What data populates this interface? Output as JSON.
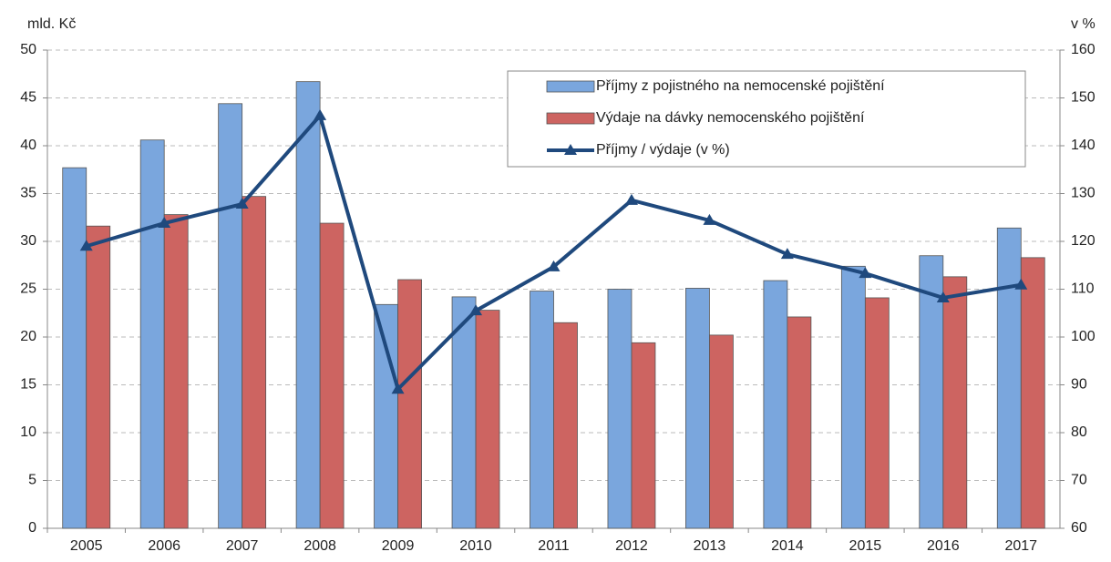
{
  "chart_data": {
    "type": "bar_line",
    "y_label": "mld. Kč",
    "y2_label": "v %",
    "categories": [
      "2005",
      "2006",
      "2007",
      "2008",
      "2009",
      "2010",
      "2011",
      "2012",
      "2013",
      "2014",
      "2015",
      "2016",
      "2017"
    ],
    "series": [
      {
        "name": "Příjmy z pojistného na nemocenské pojištění",
        "color": "#7aa6dd",
        "type": "bar",
        "values": [
          37.7,
          40.6,
          44.4,
          46.7,
          23.4,
          24.2,
          24.8,
          25.0,
          25.1,
          25.9,
          27.4,
          28.5,
          31.4
        ]
      },
      {
        "name": "Výdaje na dávky nemocenského pojištění",
        "color": "#cd6461",
        "type": "bar",
        "values": [
          31.6,
          32.8,
          34.7,
          31.9,
          26.0,
          22.8,
          21.5,
          19.4,
          20.2,
          22.1,
          24.1,
          26.3,
          28.3
        ]
      },
      {
        "name": "Příjmy / výdaje (v %)",
        "color": "#1f497d",
        "type": "line",
        "axis": "y2",
        "values": [
          119.0,
          123.8,
          127.8,
          146.3,
          89.1,
          105.5,
          114.7,
          128.6,
          124.4,
          117.3,
          113.3,
          108.2,
          110.9
        ]
      }
    ],
    "ylim": [
      0,
      50
    ],
    "yticks": [
      0,
      5,
      10,
      15,
      20,
      25,
      30,
      35,
      40,
      45,
      50
    ],
    "y2lim": [
      60,
      160
    ],
    "y2ticks": [
      60,
      70,
      80,
      90,
      100,
      110,
      120,
      130,
      140,
      150,
      160
    ],
    "grid": true,
    "legend": "top-right"
  }
}
